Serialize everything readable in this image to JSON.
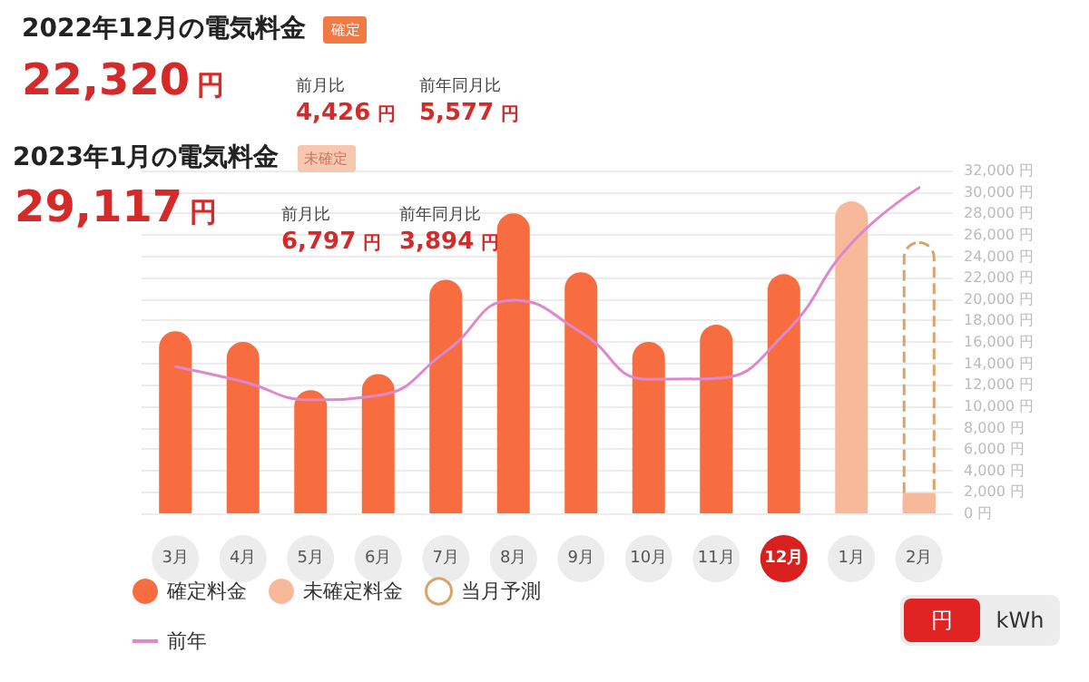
{
  "chart_data": {
    "type": "bar",
    "title": "2022年12月の電気料金",
    "subtitle": "2023年1月の電気料金",
    "categories": [
      "3月",
      "4月",
      "5月",
      "6月",
      "7月",
      "8月",
      "9月",
      "10月",
      "11月",
      "12月",
      "1月",
      "2月"
    ],
    "series": [
      {
        "name": "確定料金",
        "color": "#f76d40",
        "values": [
          17000,
          16000,
          11500,
          13000,
          21800,
          28000,
          22500,
          16000,
          17600,
          22320,
          null,
          null
        ]
      },
      {
        "name": "未確定料金",
        "color": "#f8b89a",
        "values": [
          null,
          null,
          null,
          null,
          null,
          null,
          null,
          null,
          null,
          null,
          29117,
          1900
        ]
      },
      {
        "name": "当月予測",
        "color": "#d9a46a",
        "line_style": "dashed",
        "values": [
          null,
          null,
          null,
          null,
          null,
          null,
          null,
          null,
          null,
          null,
          null,
          25400
        ]
      },
      {
        "name": "前年",
        "type": "line",
        "color": "#dd88cc",
        "marker": "none",
        "values": [
          13700,
          12300,
          10600,
          11000,
          15100,
          19900,
          16900,
          12500,
          12600,
          16700,
          25200,
          30400
        ]
      }
    ],
    "ylim": [
      0,
      32000
    ],
    "yticks": [
      {
        "value": 0,
        "label": "0 円"
      },
      {
        "value": 2000,
        "label": "2,000 円"
      },
      {
        "value": 4000,
        "label": "4,000 円"
      },
      {
        "value": 6000,
        "label": "6,000 円"
      },
      {
        "value": 8000,
        "label": "8,000 円"
      },
      {
        "value": 10000,
        "label": "10,000 円"
      },
      {
        "value": 12000,
        "label": "12,000 円"
      },
      {
        "value": 14000,
        "label": "14,000 円"
      },
      {
        "value": 16000,
        "label": "16,000 円"
      },
      {
        "value": 18000,
        "label": "18,000 円"
      },
      {
        "value": 20000,
        "label": "20,000 円"
      },
      {
        "value": 22000,
        "label": "22,000 円"
      },
      {
        "value": 24000,
        "label": "24,000 円"
      },
      {
        "value": 26000,
        "label": "26,000 円"
      },
      {
        "value": 28000,
        "label": "28,000 円"
      },
      {
        "value": 30000,
        "label": "30,000 円"
      },
      {
        "value": 32000,
        "label": "32,000 円"
      }
    ],
    "grid": "y",
    "legend": "bottom left",
    "annotations": [
      "確定",
      "22,320 円",
      "前月比",
      "4,426 円",
      "前年同月比",
      "5,577 円",
      "未確定",
      "29,117 円",
      "前月比",
      "6,797 円",
      "前年同月比",
      "3,894 円",
      "円",
      "kWh"
    ]
  }
}
